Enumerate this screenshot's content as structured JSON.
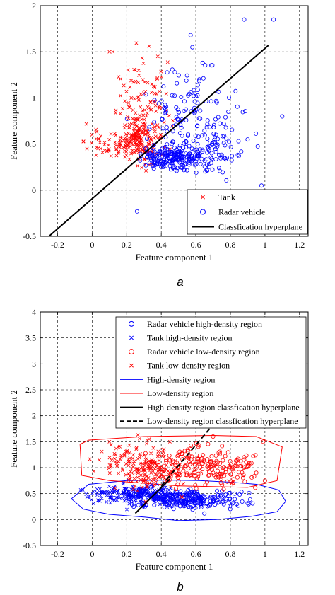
{
  "chart_data": [
    {
      "type": "scatter",
      "caption": "a",
      "xlabel": "Feature component 1",
      "ylabel": "Feature component 2",
      "xlim": [
        -0.3,
        1.25
      ],
      "ylim": [
        -0.5,
        2
      ],
      "xticks": [
        -0.2,
        0,
        0.2,
        0.4,
        0.6,
        0.8,
        1,
        1.2
      ],
      "xtick_labels": [
        "-0.2",
        "0",
        "0.2",
        "0.4",
        "0.6",
        "0.8",
        "1",
        "1.2"
      ],
      "yticks": [
        -0.5,
        0,
        0.5,
        1,
        1.5,
        2
      ],
      "ytick_labels": [
        "-0.5",
        "0",
        "0.5",
        "1",
        "1.5",
        "2"
      ],
      "grid": true,
      "legend_position": "bottom-right",
      "colors": {
        "tank": "#ff0000",
        "radar": "#0000ff",
        "hyperplane": "#000000"
      },
      "series": [
        {
          "name": "Tank",
          "marker": "x",
          "color": "#ff0000",
          "clusters": [
            {
              "n": 160,
              "cx": 0.26,
              "cy": 0.55,
              "sx": 0.06,
              "sy": 0.1
            },
            {
              "n": 120,
              "cx": 0.3,
              "cy": 0.85,
              "sx": 0.08,
              "sy": 0.25
            },
            {
              "n": 40,
              "cx": 0.12,
              "cy": 0.5,
              "sx": 0.08,
              "sy": 0.08
            }
          ],
          "points": [
            {
              "x": 0.1,
              "y": 1.5
            },
            {
              "x": 0.12,
              "y": 1.5
            },
            {
              "x": 0.33,
              "y": 1.56
            },
            {
              "x": 0.38,
              "y": 1.45
            },
            {
              "x": -0.05,
              "y": 0.53
            },
            {
              "x": -0.03,
              "y": 0.45
            },
            {
              "x": 0.25,
              "y": 1.3
            },
            {
              "x": 0.05,
              "y": 0.45
            }
          ]
        },
        {
          "name": "Radar vehicle",
          "marker": "o",
          "color": "#0000ff",
          "clusters": [
            {
              "n": 200,
              "cx": 0.48,
              "cy": 0.35,
              "sx": 0.1,
              "sy": 0.06
            },
            {
              "n": 160,
              "cx": 0.55,
              "cy": 0.7,
              "sx": 0.14,
              "sy": 0.3
            },
            {
              "n": 40,
              "cx": 0.75,
              "cy": 0.45,
              "sx": 0.08,
              "sy": 0.12
            }
          ],
          "points": [
            {
              "x": 0.88,
              "y": 1.85
            },
            {
              "x": 1.05,
              "y": 1.85
            },
            {
              "x": 0.57,
              "y": 1.68
            },
            {
              "x": 0.58,
              "y": 1.55
            },
            {
              "x": 1.1,
              "y": 0.8
            },
            {
              "x": 0.98,
              "y": 0.05
            },
            {
              "x": 0.26,
              "y": -0.23
            },
            {
              "x": 0.62,
              "y": 1.2
            },
            {
              "x": 0.9,
              "y": 0.55
            }
          ]
        },
        {
          "name": "Classfication hyperplane",
          "kind": "line",
          "color": "#000000",
          "x": [
            -0.25,
            1.02
          ],
          "y": [
            -0.5,
            1.57
          ]
        }
      ]
    },
    {
      "type": "scatter",
      "caption": "b",
      "xlabel": "Feature component 1",
      "ylabel": "Feature component 2",
      "xlim": [
        -0.3,
        1.25
      ],
      "ylim": [
        -0.5,
        4
      ],
      "xticks": [
        -0.2,
        0,
        0.2,
        0.4,
        0.6,
        0.8,
        1,
        1.2
      ],
      "xtick_labels": [
        "-0.2",
        "0",
        "0.2",
        "0.4",
        "0.6",
        "0.8",
        "1",
        "1.2"
      ],
      "yticks": [
        -0.5,
        0,
        0.5,
        1,
        1.5,
        2,
        2.5,
        3,
        3.5,
        4
      ],
      "ytick_labels": [
        "-0.5",
        "0",
        "0.5",
        "1",
        "1.5",
        "2",
        "2.5",
        "3",
        "3.5",
        "4"
      ],
      "grid": true,
      "legend_position": "top-right",
      "series": [
        {
          "name": "Radar vehicle high-density region",
          "marker": "o",
          "color": "#0000ff",
          "clusters": [
            {
              "n": 220,
              "cx": 0.5,
              "cy": 0.4,
              "sx": 0.12,
              "sy": 0.08
            },
            {
              "n": 60,
              "cx": 0.72,
              "cy": 0.35,
              "sx": 0.1,
              "sy": 0.1
            }
          ],
          "points": []
        },
        {
          "name": "Tank high-density region",
          "marker": "x",
          "color": "#0000ff",
          "clusters": [
            {
              "n": 200,
              "cx": 0.28,
              "cy": 0.5,
              "sx": 0.09,
              "sy": 0.09
            },
            {
              "n": 40,
              "cx": 0.05,
              "cy": 0.5,
              "sx": 0.06,
              "sy": 0.08
            }
          ],
          "points": []
        },
        {
          "name": "Radar vehicle low-density region",
          "marker": "o",
          "color": "#ff0000",
          "clusters": [
            {
              "n": 140,
              "cx": 0.6,
              "cy": 1.0,
              "sx": 0.12,
              "sy": 0.2
            },
            {
              "n": 60,
              "cx": 0.82,
              "cy": 1.0,
              "sx": 0.08,
              "sy": 0.15
            }
          ],
          "points": [
            {
              "x": 0.99,
              "y": 1.5
            },
            {
              "x": 0.88,
              "y": 1.2
            },
            {
              "x": 0.7,
              "y": 1.6
            },
            {
              "x": 0.95,
              "y": 0.9
            },
            {
              "x": 1.0,
              "y": 0.75
            }
          ]
        },
        {
          "name": "Tank low-density region",
          "marker": "x",
          "color": "#ff0000",
          "clusters": [
            {
              "n": 160,
              "cx": 0.32,
              "cy": 1.0,
              "sx": 0.1,
              "sy": 0.2
            },
            {
              "n": 40,
              "cx": 0.2,
              "cy": 1.2,
              "sx": 0.08,
              "sy": 0.15
            }
          ],
          "points": [
            {
              "x": 0.1,
              "y": 1.5
            },
            {
              "x": 0.33,
              "y": 1.55
            },
            {
              "x": 0.45,
              "y": 1.5
            }
          ]
        },
        {
          "name": "High-density region",
          "kind": "polygon",
          "color": "#0000ff",
          "x": [
            -0.12,
            -0.02,
            0.2,
            0.42,
            0.62,
            0.8,
            0.95,
            1.08,
            1.12,
            1.07,
            0.92,
            0.72,
            0.5,
            0.3,
            0.1,
            -0.05,
            -0.12
          ],
          "y": [
            0.4,
            0.68,
            0.75,
            0.76,
            0.75,
            0.72,
            0.68,
            0.57,
            0.35,
            0.15,
            0.06,
            0.0,
            -0.02,
            0.05,
            0.1,
            0.2,
            0.4
          ]
        },
        {
          "name": "Low-density region",
          "kind": "polygon",
          "color": "#ff0000",
          "x": [
            -0.07,
            -0.02,
            0.3,
            0.7,
            0.95,
            1.1,
            1.07,
            0.9,
            0.5,
            0.1,
            -0.06,
            -0.07
          ],
          "y": [
            1.45,
            1.53,
            1.6,
            1.62,
            1.6,
            1.4,
            0.75,
            0.62,
            0.65,
            0.75,
            0.85,
            1.45
          ]
        },
        {
          "name": "High-density region classfication hyperplane",
          "kind": "line",
          "color": "#000000",
          "dash": "solid",
          "x": [
            0.25,
            0.45
          ],
          "y": [
            0.12,
            0.78
          ]
        },
        {
          "name": "Low-density region classfication hyperplane",
          "kind": "line",
          "color": "#000000",
          "dash": "dashed",
          "x": [
            0.4,
            0.68
          ],
          "y": [
            0.65,
            1.75
          ]
        }
      ]
    }
  ]
}
